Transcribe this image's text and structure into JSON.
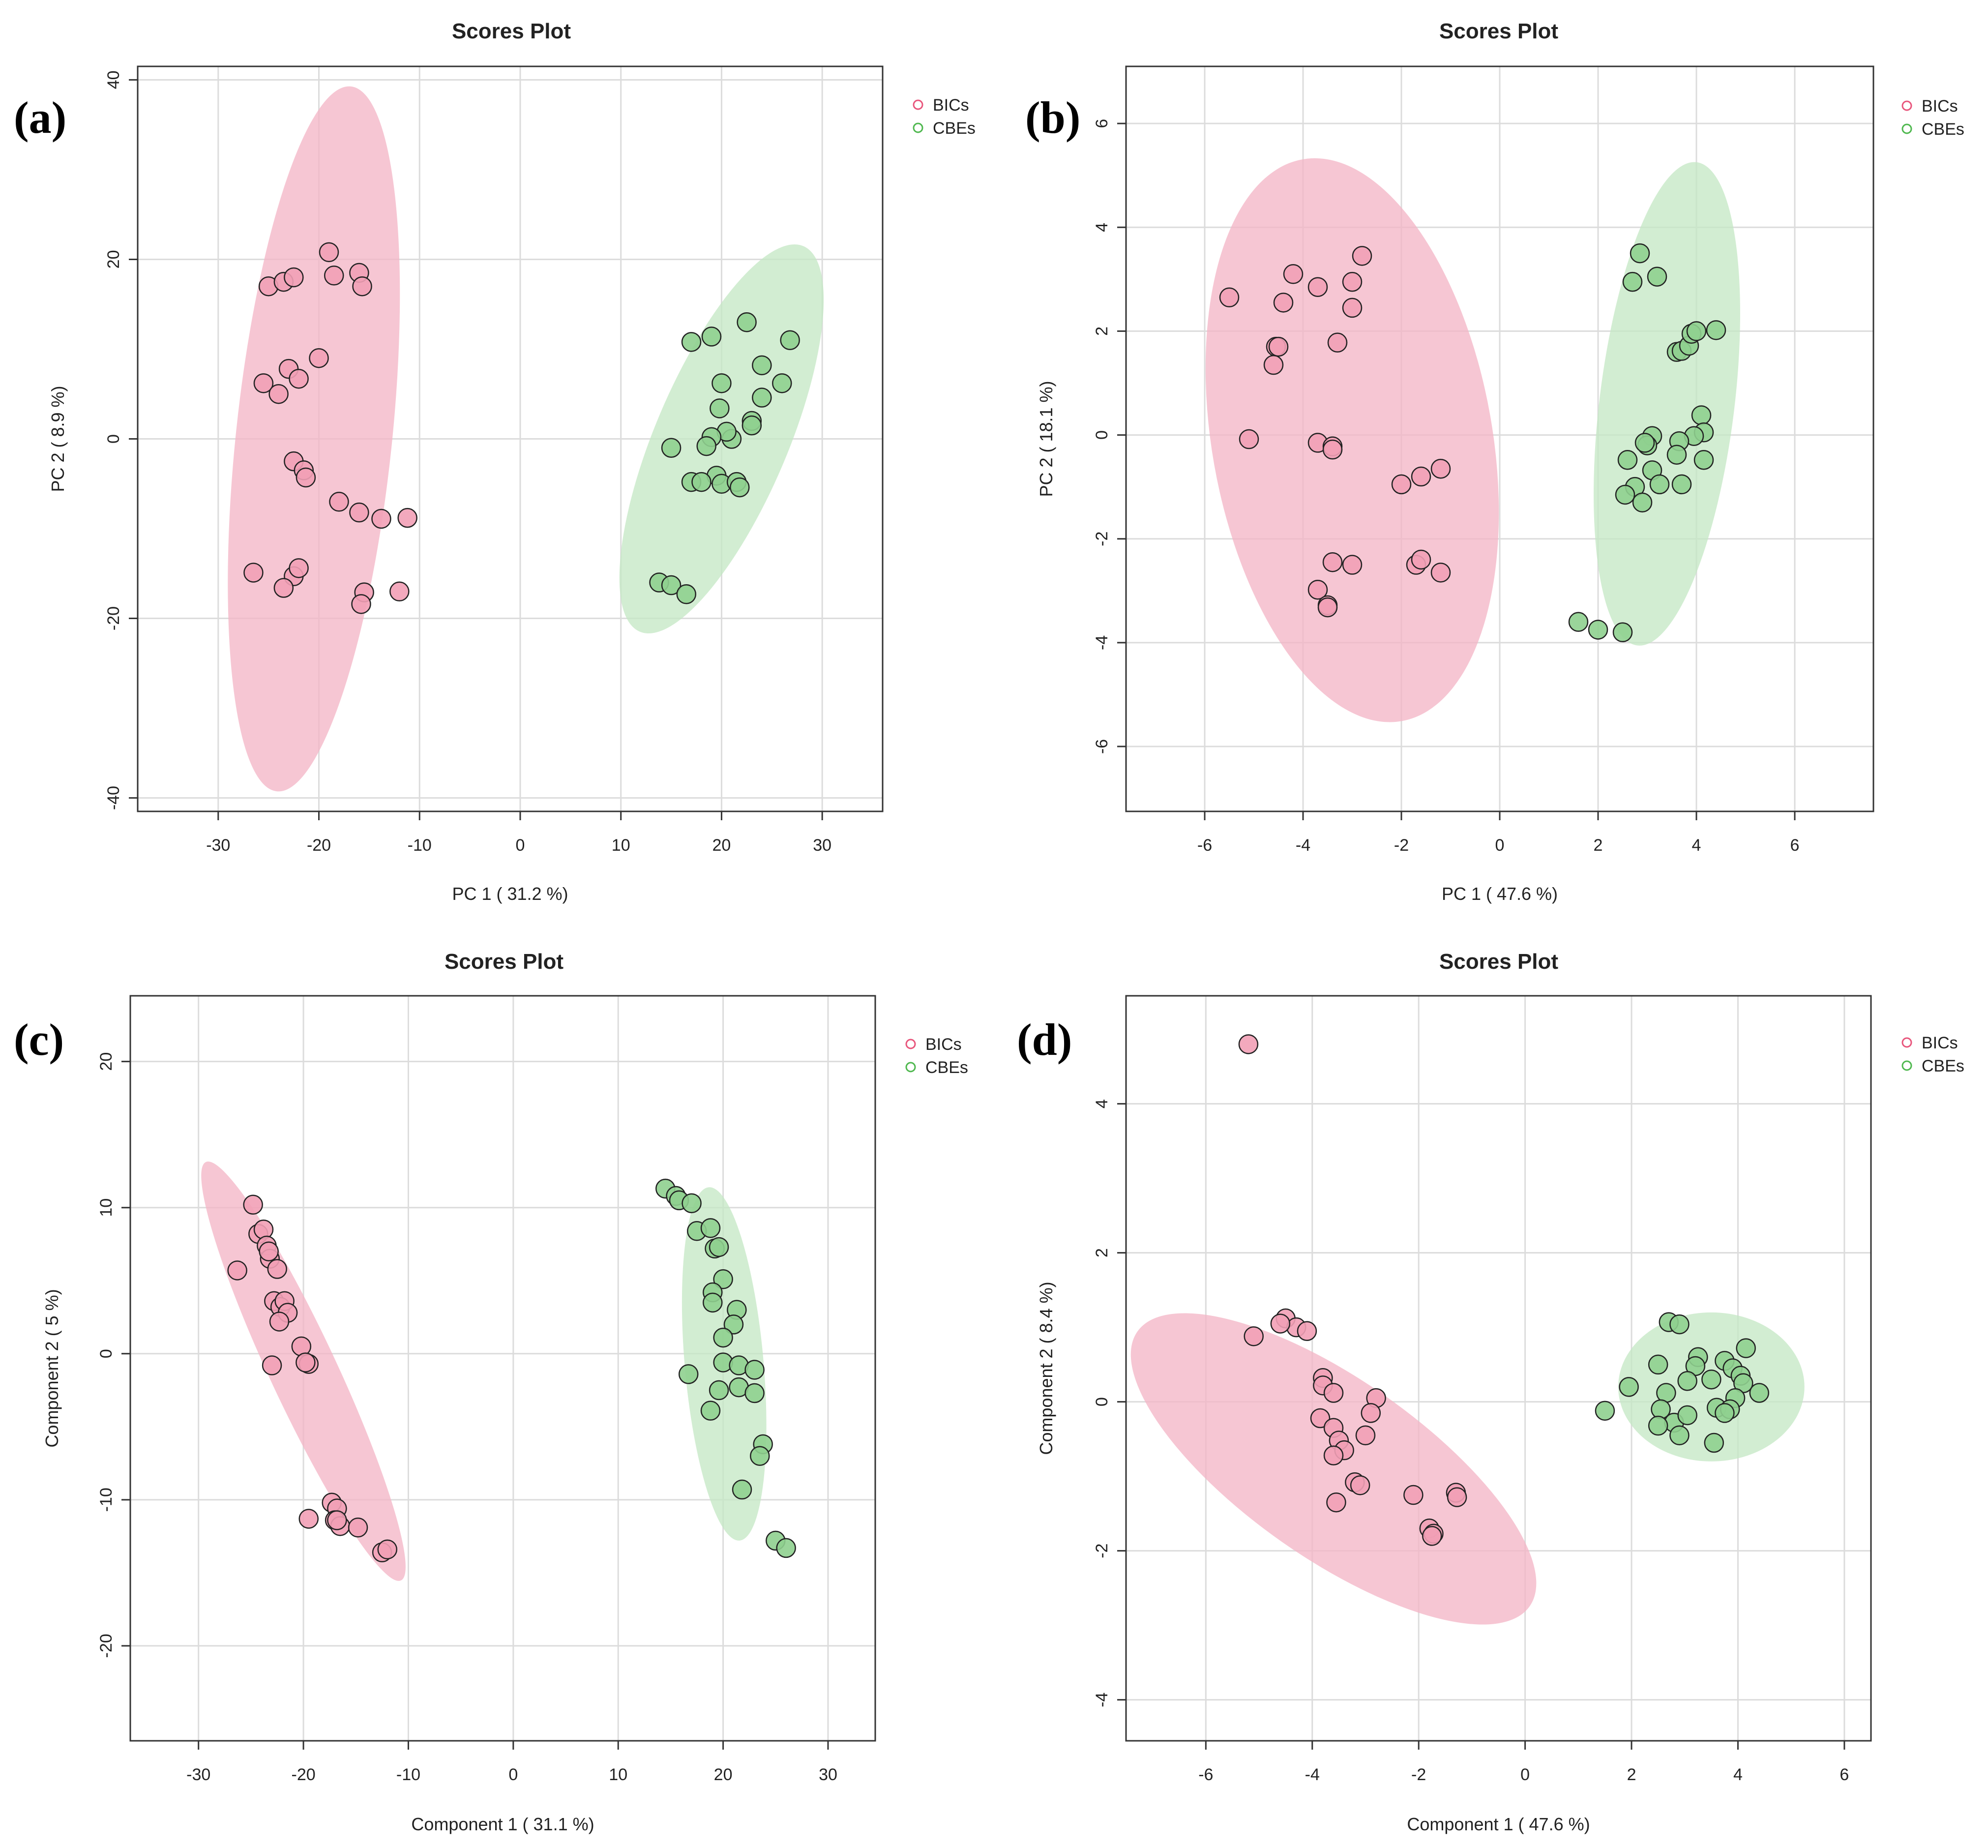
{
  "chart_data": [
    {
      "type": "scatter",
      "panel_label": "(a)",
      "title": "Scores Plot",
      "xlabel": "PC 1 ( 31.2 %)",
      "ylabel": "PC 2 ( 8.9 %)",
      "xlim": [
        -38,
        36
      ],
      "ylim": [
        -41.5,
        41.5
      ],
      "xticks": [
        -30,
        -20,
        -10,
        0,
        10,
        20,
        30
      ],
      "yticks": [
        -40,
        -20,
        0,
        20,
        40
      ],
      "grid": true,
      "legend": "top-right",
      "series": [
        {
          "name": "BICs",
          "color": "#e8567c",
          "fill": "#f2a0b6",
          "ellipse_color": "#f4b6c6",
          "ellipse": {
            "cx": -20.5,
            "cy": 0,
            "rx": 35.2,
            "ry": 8.7,
            "angle": 84
          },
          "x": [
            -25,
            -23.5,
            -22.5,
            -19,
            -18.5,
            -16,
            -15.7,
            -25.5,
            -23,
            -24,
            -22,
            -20,
            -22.5,
            -21.5,
            -21.3,
            -18,
            -16,
            -13.8,
            -11.2,
            -26.5,
            -22.5,
            -22,
            -23.5,
            -15.5,
            -15.8,
            -12
          ],
          "y": [
            17,
            17.5,
            18,
            20.8,
            18.2,
            18.5,
            17,
            6.2,
            7.8,
            5,
            6.7,
            9,
            -2.5,
            -3.5,
            -4.3,
            -7,
            -8.2,
            -8.9,
            -8.8,
            -14.9,
            -15.3,
            -14.4,
            -16.6,
            -17.1,
            -18.4,
            -17
          ]
        },
        {
          "name": "CBEs",
          "color": "#4fb84f",
          "fill": "#8fd08f",
          "ellipse_color": "#c5e8c5",
          "ellipse": {
            "cx": 20,
            "cy": 0,
            "rx": 20.8,
            "ry": 7.4,
            "angle": 67
          },
          "x": [
            17,
            19,
            22.5,
            26.8,
            24,
            20,
            19.8,
            26,
            24,
            23,
            23,
            21,
            20.5,
            19,
            18.5,
            15,
            19.5,
            20,
            21.5,
            21.8,
            17,
            18,
            13.8,
            15,
            16.5
          ],
          "y": [
            10.8,
            11.4,
            13,
            11,
            8.2,
            6.2,
            3.4,
            6.2,
            4.6,
            2,
            1.5,
            0,
            0.8,
            0.2,
            -0.8,
            -1,
            -4.1,
            -5,
            -4.8,
            -5.4,
            -4.8,
            -4.8,
            -16,
            -16.3,
            -17.3
          ]
        }
      ]
    },
    {
      "type": "scatter",
      "panel_label": "(b)",
      "title": "Scores Plot",
      "xlabel": "PC 1 ( 47.6 %)",
      "ylabel": "PC 2 ( 18.1 %)",
      "xlim": [
        -7.6,
        7.6
      ],
      "ylim": [
        -7.25,
        7.1
      ],
      "xticks": [
        -6,
        -4,
        -2,
        0,
        2,
        4,
        6
      ],
      "yticks": [
        -6,
        -4,
        -2,
        0,
        2,
        4,
        6
      ],
      "grid": true,
      "legend": "top-right",
      "series": [
        {
          "name": "BICs",
          "color": "#e8567c",
          "fill": "#f2a0b6",
          "ellipse_color": "#f4b6c6",
          "ellipse": {
            "cx": -3,
            "cy": -0.1,
            "rx": 5.8,
            "ry": 2.7,
            "angle": 100
          },
          "x": [
            -5.5,
            -4.2,
            -4.4,
            -3.7,
            -3,
            -2.8,
            -3.3,
            -3,
            -4.55,
            -4.5,
            -4.6,
            -5.1,
            -3.7,
            -3.4,
            -3.4,
            -2,
            -1.6,
            -1.2,
            -3.4,
            -3,
            -1.7,
            -1.6,
            -1.2,
            -3.7,
            -3.5,
            -3.5
          ],
          "y": [
            2.65,
            3.1,
            2.55,
            2.85,
            2.95,
            3.45,
            1.78,
            2.45,
            1.7,
            1.7,
            1.35,
            -0.08,
            -0.15,
            -0.22,
            -0.28,
            -0.95,
            -0.8,
            -0.65,
            -2.45,
            -2.5,
            -2.5,
            -2.4,
            -2.65,
            -2.98,
            -3.28,
            -3.32
          ]
        },
        {
          "name": "CBEs",
          "color": "#4fb84f",
          "fill": "#8fd08f",
          "ellipse_color": "#c5e8c5",
          "ellipse": {
            "cx": 3.4,
            "cy": 0.6,
            "rx": 4.95,
            "ry": 1.3,
            "angle": 83
          },
          "x": [
            2.85,
            2.7,
            3.2,
            3.6,
            3.7,
            3.85,
            3.9,
            4,
            4.4,
            4.1,
            3.1,
            4.15,
            3.95,
            3.65,
            3,
            2.95,
            3.6,
            4.15,
            2.6,
            3.1,
            3.25,
            2.75,
            3.7,
            2.55,
            2.9,
            1.6,
            2,
            2.5
          ],
          "y": [
            3.5,
            2.95,
            3.05,
            1.6,
            1.62,
            1.72,
            1.95,
            2,
            2.02,
            0.38,
            -0.02,
            0.05,
            -0.02,
            -0.12,
            -0.2,
            -0.15,
            -0.38,
            -0.48,
            -0.48,
            -0.68,
            -0.95,
            -1.0,
            -0.95,
            -1.15,
            -1.3,
            -3.6,
            -3.75,
            -3.8
          ]
        }
      ]
    },
    {
      "type": "scatter",
      "panel_label": "(c)",
      "title": "Scores Plot",
      "xlabel": "Component 1 ( 31.1 %)",
      "ylabel": "Component 2 ( 5 %)",
      "xlim": [
        -36.5,
        34.5
      ],
      "ylim": [
        -26.5,
        24.5
      ],
      "xticks": [
        -30,
        -20,
        -10,
        0,
        10,
        20,
        30
      ],
      "yticks": [
        -20,
        -10,
        0,
        10,
        20
      ],
      "grid": true,
      "legend": "top-right",
      "series": [
        {
          "name": "BICs",
          "color": "#e8567c",
          "fill": "#f2a0b6",
          "ellipse_color": "#f4b6c6",
          "ellipse": {
            "cx": -20,
            "cy": -1.2,
            "rx": 22,
            "ry": 2.3,
            "angle": 115
          },
          "x": [
            -24.8,
            -24.3,
            -23.8,
            -23.5,
            -23.2,
            -23.3,
            -22.5,
            -26.3,
            -22.8,
            -22.2,
            -21.8,
            -21.5,
            -22.3,
            -20.2,
            -19.5,
            -19.8,
            -23,
            -17.3,
            -16.8,
            -17,
            -16.5,
            -16.8,
            -19.5,
            -14.8,
            -12.5,
            -12
          ],
          "y": [
            10.2,
            8.2,
            8.5,
            7.4,
            6.5,
            7,
            5.8,
            5.7,
            3.6,
            3.2,
            3.6,
            2.8,
            2.2,
            0.5,
            -0.7,
            -0.6,
            -0.8,
            -10.2,
            -10.6,
            -11.4,
            -11.8,
            -11.4,
            -11.3,
            -11.9,
            -13.6,
            -13.4
          ]
        },
        {
          "name": "CBEs",
          "color": "#4fb84f",
          "fill": "#8fd08f",
          "ellipse_color": "#c5e8c5",
          "ellipse": {
            "cx": 20.1,
            "cy": -0.7,
            "rx": 16.9,
            "ry": 2.7,
            "angle": 95
          },
          "x": [
            14.5,
            15.5,
            15.8,
            17,
            17.5,
            18.8,
            19.2,
            19.6,
            20,
            19,
            19,
            21.3,
            21,
            20,
            20,
            21.5,
            23,
            16.7,
            21.5,
            19.6,
            18.8,
            23,
            23.8,
            23.5,
            21.8,
            25,
            26
          ],
          "y": [
            11.3,
            10.8,
            10.5,
            10.3,
            8.4,
            8.6,
            7.2,
            7.3,
            5.1,
            4.2,
            3.5,
            3,
            2,
            1.1,
            -0.6,
            -0.8,
            -1.1,
            -1.4,
            -2.3,
            -2.5,
            -3.9,
            -2.7,
            -6.2,
            -7,
            -9.3,
            -12.8,
            -13.3
          ]
        }
      ]
    },
    {
      "type": "scatter",
      "panel_label": "(d)",
      "title": "Scores Plot",
      "xlabel": "Component 1 ( 47.6 %)",
      "ylabel": "Component 2 ( 8.4 %)",
      "xlim": [
        -7.5,
        6.5
      ],
      "ylim": [
        -4.55,
        5.45
      ],
      "xticks": [
        -6,
        -4,
        -2,
        0,
        2,
        4,
        6
      ],
      "yticks": [
        -4,
        -2,
        0,
        2,
        4
      ],
      "grid": true,
      "legend": "top-right",
      "series": [
        {
          "name": "BICs",
          "color": "#e8567c",
          "fill": "#f2a0b6",
          "ellipse_color": "#f4b6c6",
          "ellipse": {
            "cx": -3.6,
            "cy": -0.9,
            "rx": 4.5,
            "ry": 1.2,
            "angle": 145
          },
          "x": [
            -5.2,
            -4.5,
            -4.3,
            -4.1,
            -5.1,
            -4.6,
            -3.8,
            -3.8,
            -3.6,
            -2.8,
            -3.85,
            -2.9,
            -3.6,
            -3,
            -3.5,
            -3.4,
            -3.6,
            -3.2,
            -3.1,
            -3.55,
            -2.1,
            -1.3,
            -1.28,
            -1.8,
            -1.72,
            -1.75
          ],
          "y": [
            4.8,
            1.12,
            1.0,
            0.95,
            0.88,
            1.05,
            0.32,
            0.22,
            0.12,
            0.05,
            -0.22,
            -0.15,
            -0.35,
            -0.45,
            -0.52,
            -0.65,
            -0.72,
            -1.08,
            -1.12,
            -1.35,
            -1.25,
            -1.22,
            -1.28,
            -1.7,
            -1.77,
            -1.8
          ]
        },
        {
          "name": "CBEs",
          "color": "#4fb84f",
          "fill": "#8fd08f",
          "ellipse_color": "#c5e8c5",
          "ellipse": {
            "cx": 3.5,
            "cy": 0.2,
            "rx": 1.75,
            "ry": 1.0,
            "angle": 0
          },
          "x": [
            2.7,
            2.9,
            2.5,
            3.25,
            3.2,
            3.75,
            4.15,
            3.9,
            3.5,
            3.05,
            2.65,
            4.05,
            4.1,
            4.4,
            3.95,
            1.95,
            2.8,
            2.55,
            3.6,
            3.85,
            3.75,
            3.05,
            1.5,
            2.5,
            2.9,
            3.55
          ],
          "y": [
            1.07,
            1.04,
            0.5,
            0.6,
            0.48,
            0.55,
            0.72,
            0.45,
            0.3,
            0.28,
            0.12,
            0.35,
            0.25,
            0.12,
            0.05,
            0.2,
            -0.28,
            -0.1,
            -0.08,
            -0.1,
            -0.15,
            -0.18,
            -0.12,
            -0.32,
            -0.45,
            -0.55
          ]
        }
      ]
    }
  ]
}
